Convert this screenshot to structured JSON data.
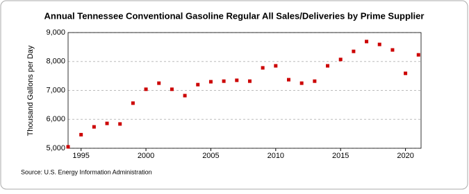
{
  "chart_data": {
    "type": "scatter",
    "title": "Annual Tennessee Conventional Gasoline Regular All Sales/Deliveries by Prime Supplier",
    "y_label": "Thousand Gallons per Day",
    "source": "Source: U.S. Energy Information Administration",
    "x": [
      1994,
      1995,
      1996,
      1997,
      1998,
      1999,
      2000,
      2001,
      2002,
      2003,
      2004,
      2005,
      2006,
      2007,
      2008,
      2009,
      2010,
      2011,
      2012,
      2013,
      2014,
      2015,
      2016,
      2017,
      2018,
      2019,
      2020,
      2021
    ],
    "values": [
      5050,
      5470,
      5740,
      5860,
      5840,
      6560,
      7040,
      7250,
      7040,
      6820,
      7200,
      7300,
      7320,
      7350,
      7320,
      7780,
      7850,
      7370,
      7250,
      7320,
      7850,
      8070,
      8350,
      8690,
      8590,
      8400,
      7590,
      8230
    ],
    "color": "#cc0000",
    "xlim": [
      1994,
      2021.2
    ],
    "xticks": [
      1995,
      2000,
      2005,
      2010,
      2015,
      2020
    ],
    "ylim": [
      5000,
      9000
    ],
    "yticks": [
      {
        "value": 5000,
        "label": "5,000"
      },
      {
        "value": 6000,
        "label": "6,000"
      },
      {
        "value": 7000,
        "label": "7,000"
      },
      {
        "value": 8000,
        "label": "8,000"
      },
      {
        "value": 9000,
        "label": "9,000"
      }
    ],
    "grid": true
  }
}
